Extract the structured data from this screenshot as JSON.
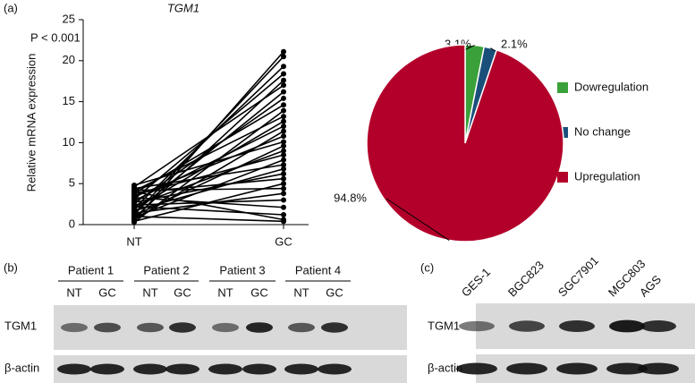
{
  "chart_data": [
    {
      "type": "paired-line",
      "panel": "(a)",
      "title": "TGM1",
      "annotation": "P < 0.001",
      "y_label": "Relative mRNA expression",
      "categories": [
        "NT",
        "GC"
      ],
      "ylim": [
        0,
        25
      ],
      "yticks": [
        0,
        5,
        10,
        15,
        20,
        25
      ],
      "color": "#000000",
      "series": [
        {
          "values": [
            0.5,
            21.1
          ]
        },
        {
          "values": [
            1.2,
            20.5
          ]
        },
        {
          "values": [
            2.0,
            19.3
          ]
        },
        {
          "values": [
            3.1,
            18.4
          ]
        },
        {
          "values": [
            0.8,
            17.6
          ]
        },
        {
          "values": [
            4.6,
            17.0
          ]
        },
        {
          "values": [
            1.5,
            16.2
          ]
        },
        {
          "values": [
            2.6,
            15.4
          ]
        },
        {
          "values": [
            3.8,
            14.6
          ]
        },
        {
          "values": [
            0.3,
            13.9
          ]
        },
        {
          "values": [
            4.1,
            13.2
          ]
        },
        {
          "values": [
            1.9,
            12.6
          ]
        },
        {
          "values": [
            2.9,
            12.0
          ]
        },
        {
          "values": [
            0.6,
            11.4
          ]
        },
        {
          "values": [
            3.4,
            10.8
          ]
        },
        {
          "values": [
            4.8,
            10.1
          ]
        },
        {
          "values": [
            1.1,
            9.6
          ]
        },
        {
          "values": [
            2.3,
            9.0
          ]
        },
        {
          "values": [
            3.6,
            8.5
          ]
        },
        {
          "values": [
            0.9,
            7.9
          ]
        },
        {
          "values": [
            4.4,
            7.3
          ]
        },
        {
          "values": [
            1.7,
            6.8
          ]
        },
        {
          "values": [
            2.7,
            6.2
          ]
        },
        {
          "values": [
            3.9,
            5.6
          ]
        },
        {
          "values": [
            0.4,
            5.0
          ]
        },
        {
          "values": [
            4.2,
            4.4
          ]
        },
        {
          "values": [
            1.4,
            3.8
          ]
        },
        {
          "values": [
            2.4,
            3.0
          ]
        },
        {
          "values": [
            3.3,
            2.1
          ]
        },
        {
          "values": [
            2.2,
            1.2
          ]
        },
        {
          "values": [
            4.0,
            0.6
          ]
        },
        {
          "values": [
            1.0,
            0.4
          ]
        }
      ]
    },
    {
      "type": "pie",
      "categories": [
        "Dowregulation",
        "No change",
        "Upregulation"
      ],
      "values": [
        3.1,
        2.1,
        94.8
      ],
      "value_labels": [
        "3.1%",
        "2.1%",
        "94.8%"
      ],
      "colors": [
        "#3aa13a",
        "#1a4f7a",
        "#b3002a"
      ]
    }
  ],
  "blots": {
    "b": {
      "panel": "(b)",
      "groups": [
        "Patient 1",
        "Patient 2",
        "Patient 3",
        "Patient 4"
      ],
      "lanes": [
        "NT",
        "GC",
        "NT",
        "GC",
        "NT",
        "GC",
        "NT",
        "GC"
      ],
      "rows": [
        "TGM1",
        "β-actin"
      ]
    },
    "c": {
      "panel": "(c)",
      "lanes": [
        "GES-1",
        "BGC823",
        "SGC7901",
        "MGC803",
        "AGS"
      ],
      "rows": [
        "TGM1",
        "β-actin"
      ]
    }
  }
}
